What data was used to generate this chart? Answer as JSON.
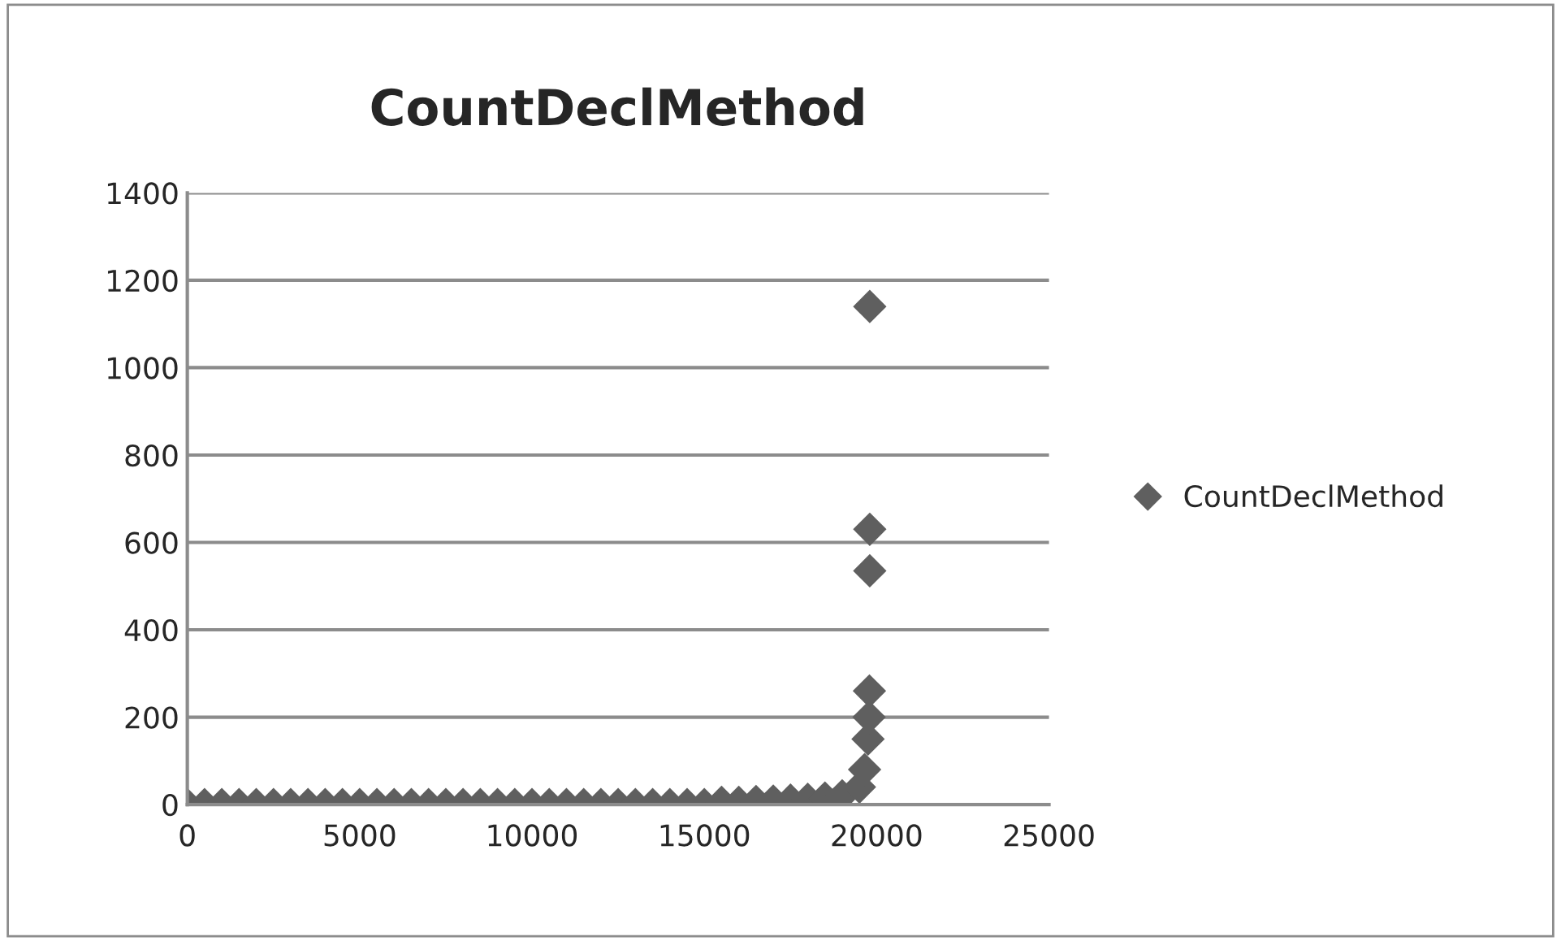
{
  "chart_data": {
    "type": "scatter",
    "title": "CountDeclMethod",
    "series": [
      {
        "name": "CountDeclMethod",
        "color": "#5f5f5f",
        "x": [
          0,
          500,
          1000,
          1500,
          2000,
          2500,
          3000,
          3500,
          4000,
          4500,
          5000,
          5500,
          6000,
          6500,
          7000,
          7500,
          8000,
          8500,
          9000,
          9500,
          10000,
          10500,
          11000,
          11500,
          12000,
          12500,
          13000,
          13500,
          14000,
          14500,
          15000,
          15500,
          16000,
          16500,
          17000,
          17500,
          18000,
          18500,
          19000,
          19500,
          19650,
          19750,
          19780,
          19790,
          19800,
          19800,
          19800
        ],
        "values": [
          0,
          0,
          0,
          0,
          0,
          0,
          0,
          0,
          0,
          0,
          0,
          0,
          0,
          0,
          0,
          0,
          0,
          0,
          0,
          0,
          0,
          0,
          0,
          0,
          0,
          0,
          0,
          0,
          0,
          0,
          0,
          5,
          5,
          7,
          8,
          10,
          12,
          15,
          20,
          40,
          80,
          150,
          200,
          260,
          535,
          630,
          1140
        ]
      }
    ],
    "xlim": [
      0,
      25000
    ],
    "xticks": [
      0,
      5000,
      10000,
      15000,
      20000,
      25000
    ],
    "ylim": [
      0,
      1400
    ],
    "yticks": [
      0,
      200,
      400,
      600,
      800,
      1000,
      1200,
      1400
    ],
    "grid": "y",
    "legend": "right",
    "marker": "diamond"
  }
}
